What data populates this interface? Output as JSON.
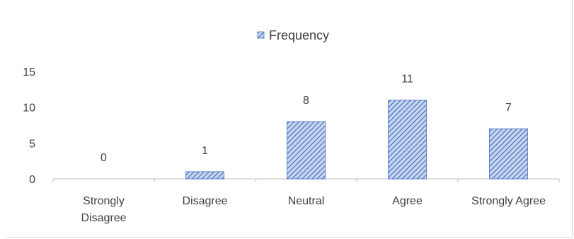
{
  "chart_data": {
    "type": "bar",
    "categories": [
      [
        "Strongly",
        "Disagree"
      ],
      [
        "Disagree"
      ],
      [
        "Neutral"
      ],
      [
        "Agree"
      ],
      [
        "Strongly Agree"
      ]
    ],
    "series": [
      {
        "name": "Frequency",
        "values": [
          0,
          1,
          8,
          11,
          7
        ],
        "color": "#4472c4"
      }
    ],
    "data_labels": [
      "0",
      "1",
      "8",
      "11",
      "7"
    ],
    "y_ticks": [
      "0",
      "5",
      "10",
      "15"
    ],
    "ylim": [
      0,
      15
    ],
    "grid": false,
    "legend_position": "top-center",
    "pattern": "diagonal-hatch"
  }
}
